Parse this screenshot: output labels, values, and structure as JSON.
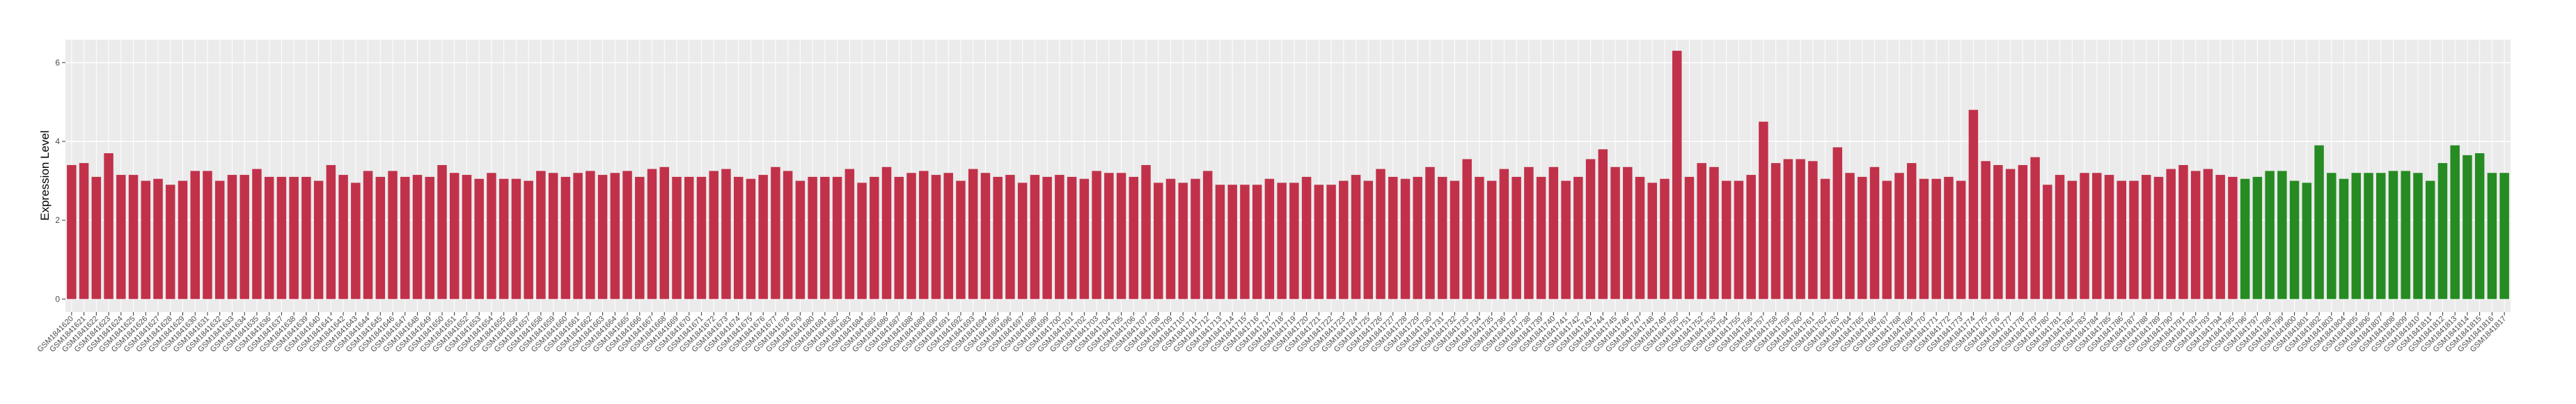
{
  "chart_data": {
    "type": "bar",
    "y_label": "Expression Level",
    "categories": [
      "GSM1841620",
      "GSM1841621",
      "GSM1841622",
      "GSM1841623",
      "GSM1841624",
      "GSM1841625",
      "GSM1841626",
      "GSM1841627",
      "GSM1841628",
      "GSM1841629",
      "GSM1841630",
      "GSM1841631",
      "GSM1841632",
      "GSM1841633",
      "GSM1841634",
      "GSM1841635",
      "GSM1841636",
      "GSM1841637",
      "GSM1841638",
      "GSM1841639",
      "GSM1841640",
      "GSM1841641",
      "GSM1841642",
      "GSM1841643",
      "GSM1841644",
      "GSM1841645",
      "GSM1841646",
      "GSM1841647",
      "GSM1841648",
      "GSM1841649",
      "GSM1841650",
      "GSM1841651",
      "GSM1841652",
      "GSM1841653",
      "GSM1841654",
      "GSM1841655",
      "GSM1841656",
      "GSM1841657",
      "GSM1841658",
      "GSM1841659",
      "GSM1841660",
      "GSM1841661",
      "GSM1841662",
      "GSM1841663",
      "GSM1841664",
      "GSM1841665",
      "GSM1841666",
      "GSM1841667",
      "GSM1841668",
      "GSM1841669",
      "GSM1841670",
      "GSM1841671",
      "GSM1841672",
      "GSM1841673",
      "GSM1841674",
      "GSM1841675",
      "GSM1841676",
      "GSM1841677",
      "GSM1841678",
      "GSM1841679",
      "GSM1841680",
      "GSM1841681",
      "GSM1841682",
      "GSM1841683",
      "GSM1841684",
      "GSM1841685",
      "GSM1841686",
      "GSM1841687",
      "GSM1841688",
      "GSM1841689",
      "GSM1841690",
      "GSM1841691",
      "GSM1841692",
      "GSM1841693",
      "GSM1841694",
      "GSM1841695",
      "GSM1841696",
      "GSM1841697",
      "GSM1841698",
      "GSM1841699",
      "GSM1841700",
      "GSM1841701",
      "GSM1841702",
      "GSM1841703",
      "GSM1841704",
      "GSM1841705",
      "GSM1841706",
      "GSM1841707",
      "GSM1841708",
      "GSM1841709",
      "GSM1841710",
      "GSM1841711",
      "GSM1841712",
      "GSM1841713",
      "GSM1841714",
      "GSM1841715",
      "GSM1841716",
      "GSM1841717",
      "GSM1841718",
      "GSM1841719",
      "GSM1841720",
      "GSM1841721",
      "GSM1841722",
      "GSM1841723",
      "GSM1841724",
      "GSM1841725",
      "GSM1841726",
      "GSM1841727",
      "GSM1841728",
      "GSM1841729",
      "GSM1841730",
      "GSM1841731",
      "GSM1841732",
      "GSM1841733",
      "GSM1841734",
      "GSM1841735",
      "GSM1841736",
      "GSM1841737",
      "GSM1841738",
      "GSM1841739",
      "GSM1841740",
      "GSM1841741",
      "GSM1841742",
      "GSM1841743",
      "GSM1841744",
      "GSM1841745",
      "GSM1841746",
      "GSM1841747",
      "GSM1841748",
      "GSM1841749",
      "GSM1841750",
      "GSM1841751",
      "GSM1841752",
      "GSM1841753",
      "GSM1841754",
      "GSM1841755",
      "GSM1841756",
      "GSM1841757",
      "GSM1841758",
      "GSM1841759",
      "GSM1841760",
      "GSM1841761",
      "GSM1841762",
      "GSM1841763",
      "GSM1841764",
      "GSM1841765",
      "GSM1841766",
      "GSM1841767",
      "GSM1841768",
      "GSM1841769",
      "GSM1841770",
      "GSM1841771",
      "GSM1841772",
      "GSM1841773",
      "GSM1841774",
      "GSM1841775",
      "GSM1841776",
      "GSM1841777",
      "GSM1841778",
      "GSM1841779",
      "GSM1841780",
      "GSM1841781",
      "GSM1841782",
      "GSM1841783",
      "GSM1841784",
      "GSM1841785",
      "GSM1841786",
      "GSM1841787",
      "GSM1841788",
      "GSM1841789",
      "GSM1841790",
      "GSM1841791",
      "GSM1841792",
      "GSM1841793",
      "GSM1841794",
      "GSM1841795",
      "GSM1841796",
      "GSM1841797",
      "GSM1841798",
      "GSM1841799",
      "GSM1841800",
      "GSM1841801",
      "GSM1841802",
      "GSM1841803",
      "GSM1841804",
      "GSM1841805",
      "GSM1841806",
      "GSM1841807",
      "GSM1841808",
      "GSM1841809",
      "GSM1841810",
      "GSM1841811",
      "GSM1841812",
      "GSM1841813",
      "GSM1841814",
      "GSM1841815",
      "GSM1841816",
      "GSM1841817"
    ],
    "series": [
      {
        "color": "#c1314a",
        "values": [
          3.4,
          3.45,
          3.1,
          3.7,
          3.15,
          3.15,
          3.0,
          3.05,
          2.9,
          3.0,
          3.25,
          3.25,
          3.0,
          3.15,
          3.15,
          3.3,
          3.1,
          3.1,
          3.1,
          3.1,
          3.0,
          3.4,
          3.15,
          2.95,
          3.25,
          3.1,
          3.25,
          3.1,
          3.15,
          3.1,
          3.4,
          3.2,
          3.15,
          3.05,
          3.2,
          3.05,
          3.05,
          3.0,
          3.25,
          3.2,
          3.1,
          3.2,
          3.25,
          3.15,
          3.2,
          3.25,
          3.1,
          3.3,
          3.35,
          3.1,
          3.1,
          3.1,
          3.25,
          3.3,
          3.1,
          3.05,
          3.15,
          3.35,
          3.25,
          3.0,
          3.1,
          3.1,
          3.1,
          3.3,
          2.95,
          3.1,
          3.35,
          3.1,
          3.2,
          3.25,
          3.15,
          3.2,
          3.0,
          3.3,
          3.2,
          3.1,
          3.15,
          2.95,
          3.15,
          3.1,
          3.15,
          3.1,
          3.05,
          3.25,
          3.2,
          3.2,
          3.1,
          3.4,
          2.95,
          3.05,
          2.95,
          3.05,
          3.25,
          2.9,
          2.9,
          2.9,
          2.9,
          3.05,
          2.95,
          2.95,
          3.1,
          2.9,
          2.9,
          3.0,
          3.15,
          3.0,
          3.3,
          3.1,
          3.05,
          3.1,
          3.35,
          3.1,
          3.0,
          3.55,
          3.1,
          3.0,
          3.3,
          3.1,
          3.35,
          3.1,
          3.35,
          3.0,
          3.1,
          3.55,
          3.8,
          3.35,
          3.35,
          3.1,
          2.95,
          3.05,
          6.3,
          3.1,
          3.45,
          3.35,
          3.0,
          3.0,
          3.15,
          4.5,
          3.45,
          3.55,
          3.55,
          3.5,
          3.05,
          3.85,
          3.2,
          3.1,
          3.35,
          3.0,
          3.2,
          3.45,
          3.05,
          3.05,
          3.1,
          3.0,
          4.8,
          3.5,
          3.4,
          3.3,
          3.4,
          3.6,
          2.9,
          3.15,
          3.0,
          3.2,
          3.2,
          3.15,
          3.0,
          3.0,
          3.15,
          3.1,
          3.3,
          3.4,
          3.25,
          3.3,
          3.15,
          3.1,
          null,
          null,
          null,
          null,
          null,
          null,
          null,
          null,
          null,
          null,
          null,
          null,
          null,
          null,
          null,
          null,
          null,
          null,
          null,
          null,
          null,
          null
        ]
      },
      {
        "color": "#268b22",
        "values": [
          null,
          null,
          null,
          null,
          null,
          null,
          null,
          null,
          null,
          null,
          null,
          null,
          null,
          null,
          null,
          null,
          null,
          null,
          null,
          null,
          null,
          null,
          null,
          null,
          null,
          null,
          null,
          null,
          null,
          null,
          null,
          null,
          null,
          null,
          null,
          null,
          null,
          null,
          null,
          null,
          null,
          null,
          null,
          null,
          null,
          null,
          null,
          null,
          null,
          null,
          null,
          null,
          null,
          null,
          null,
          null,
          null,
          null,
          null,
          null,
          null,
          null,
          null,
          null,
          null,
          null,
          null,
          null,
          null,
          null,
          null,
          null,
          null,
          null,
          null,
          null,
          null,
          null,
          null,
          null,
          null,
          null,
          null,
          null,
          null,
          null,
          null,
          null,
          null,
          null,
          null,
          null,
          null,
          null,
          null,
          null,
          null,
          null,
          null,
          null,
          null,
          null,
          null,
          null,
          null,
          null,
          null,
          null,
          null,
          null,
          null,
          null,
          null,
          null,
          null,
          null,
          null,
          null,
          null,
          null,
          null,
          null,
          null,
          null,
          null,
          null,
          null,
          null,
          null,
          null,
          null,
          null,
          null,
          null,
          null,
          null,
          null,
          null,
          null,
          null,
          null,
          null,
          null,
          null,
          null,
          null,
          null,
          null,
          null,
          null,
          null,
          null,
          null,
          null,
          null,
          null,
          null,
          null,
          null,
          null,
          null,
          null,
          null,
          null,
          null,
          null,
          null,
          null,
          null,
          null,
          null,
          null,
          null,
          null,
          null,
          null,
          3.05,
          3.1,
          3.25,
          3.25,
          3.0,
          2.95,
          3.9,
          3.2,
          3.05,
          3.2,
          3.2,
          3.2,
          3.25,
          3.25,
          3.2,
          3.0,
          3.45,
          3.9,
          3.65,
          3.7,
          3.2,
          3.2
        ]
      }
    ],
    "ylim": [
      -0.33,
      6.58
    ],
    "yticks": [
      0,
      2,
      4,
      6
    ],
    "grid": true
  }
}
